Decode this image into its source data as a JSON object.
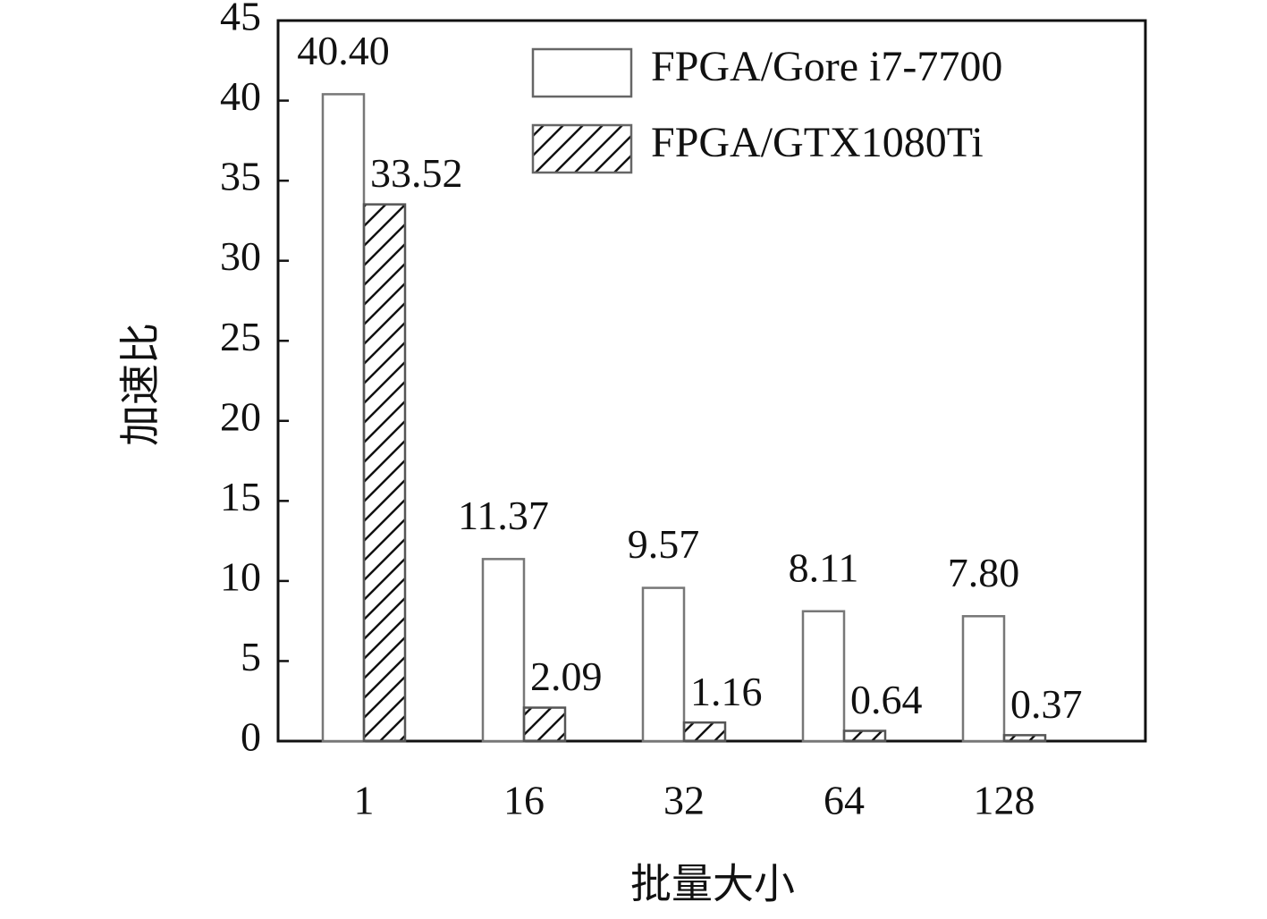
{
  "chart_data": {
    "type": "bar",
    "xlabel": "批量大小",
    "ylabel": "加速比",
    "categories": [
      "1",
      "16",
      "32",
      "64",
      "128"
    ],
    "series": [
      {
        "name": "FPGA/Gore i7-7700",
        "color": "#ffffff",
        "hatch": false,
        "values": [
          40.4,
          11.37,
          9.57,
          8.11,
          7.8
        ],
        "value_labels": [
          "40.40",
          "11.37",
          "9.57",
          "8.11",
          "7.80"
        ]
      },
      {
        "name": "FPGA/GTX1080Ti",
        "color": "#ffffff",
        "hatch": true,
        "values": [
          33.52,
          2.09,
          1.16,
          0.64,
          0.37
        ],
        "value_labels": [
          "33.52",
          "2.09",
          "1.16",
          "0.64",
          "0.37"
        ]
      }
    ],
    "ylim": [
      0,
      45
    ],
    "yticks": [
      0,
      5,
      10,
      15,
      20,
      25,
      30,
      35,
      40,
      45
    ],
    "legend": "upper right",
    "grid": false
  }
}
